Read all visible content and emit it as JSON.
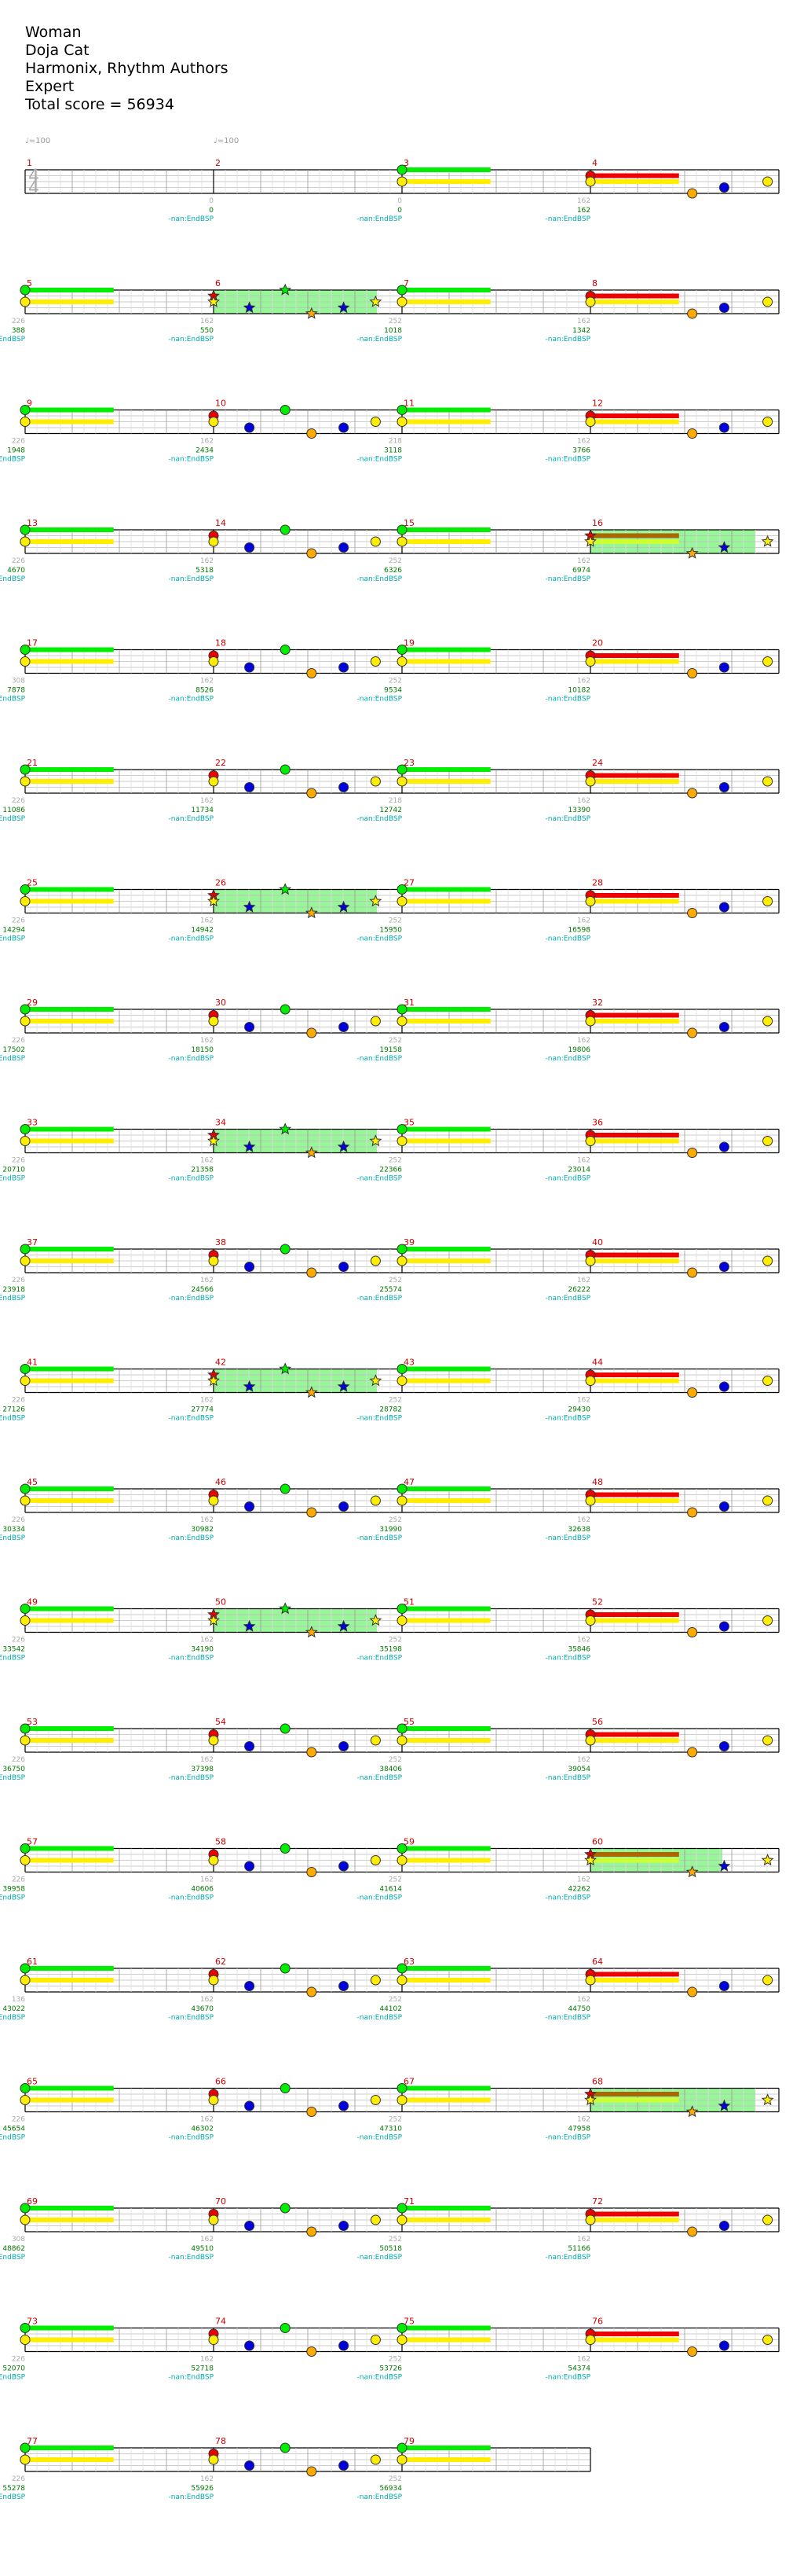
{
  "song": {
    "title": "Woman",
    "artist": "Doja Cat",
    "charter": "Harmonix, Rhythm Authors",
    "difficulty": "Expert",
    "total_score_label": "Total score = 56934"
  },
  "tempo_markers": [
    "♩=100",
    "♩=100"
  ],
  "time_signature": {
    "numerator": "4",
    "denominator": "4"
  },
  "stats_label": "-nan:EndBSP",
  "lane_colors": {
    "green": "#00ee00",
    "red": "#ee0000",
    "yellow": "#ffee00",
    "blue": "#0000dd",
    "orange": "#ffaa00",
    "star_power": "#99f599",
    "sp_sustain": "#aa6600"
  },
  "measures": [
    {
      "num": "1",
      "tick": "",
      "score": "",
      "showStats": false,
      "sp": false
    },
    {
      "num": "2",
      "tick": "0",
      "score": "0",
      "showStats": true,
      "sp": false
    },
    {
      "num": "3",
      "tick": "0",
      "score": "0",
      "showStats": true,
      "sp": false
    },
    {
      "num": "4",
      "tick": "162",
      "score": "162",
      "showStats": true,
      "sp": false
    },
    {
      "num": "5",
      "tick": "226",
      "score": "388",
      "showStats": true,
      "sp": false
    },
    {
      "num": "6",
      "tick": "162",
      "score": "550",
      "showStats": true,
      "sp": true
    },
    {
      "num": "7",
      "tick": "252",
      "score": "1018",
      "showStats": true,
      "sp": false
    },
    {
      "num": "8",
      "tick": "162",
      "score": "1342",
      "showStats": true,
      "sp": false
    },
    {
      "num": "9",
      "tick": "226",
      "score": "1948",
      "showStats": true,
      "sp": false
    },
    {
      "num": "10",
      "tick": "162",
      "score": "2434",
      "showStats": true,
      "sp": false
    },
    {
      "num": "11",
      "tick": "218",
      "score": "3118",
      "showStats": true,
      "sp": false
    },
    {
      "num": "12",
      "tick": "162",
      "score": "3766",
      "showStats": true,
      "sp": false
    },
    {
      "num": "13",
      "tick": "226",
      "score": "4670",
      "showStats": true,
      "sp": false
    },
    {
      "num": "14",
      "tick": "162",
      "score": "5318",
      "showStats": true,
      "sp": false
    },
    {
      "num": "15",
      "tick": "252",
      "score": "6326",
      "showStats": true,
      "sp": false
    },
    {
      "num": "16",
      "tick": "162",
      "score": "6974",
      "showStats": true,
      "sp": true
    },
    {
      "num": "17",
      "tick": "308",
      "score": "7878",
      "showStats": true,
      "sp": false
    },
    {
      "num": "18",
      "tick": "162",
      "score": "8526",
      "showStats": true,
      "sp": false
    },
    {
      "num": "19",
      "tick": "252",
      "score": "9534",
      "showStats": true,
      "sp": false
    },
    {
      "num": "20",
      "tick": "162",
      "score": "10182",
      "showStats": true,
      "sp": false
    },
    {
      "num": "21",
      "tick": "226",
      "score": "11086",
      "showStats": true,
      "sp": false
    },
    {
      "num": "22",
      "tick": "162",
      "score": "11734",
      "showStats": true,
      "sp": false
    },
    {
      "num": "23",
      "tick": "218",
      "score": "12742",
      "showStats": true,
      "sp": false
    },
    {
      "num": "24",
      "tick": "162",
      "score": "13390",
      "showStats": true,
      "sp": false
    },
    {
      "num": "25",
      "tick": "226",
      "score": "14294",
      "showStats": true,
      "sp": false
    },
    {
      "num": "26",
      "tick": "162",
      "score": "14942",
      "showStats": true,
      "sp": true
    },
    {
      "num": "27",
      "tick": "252",
      "score": "15950",
      "showStats": true,
      "sp": false
    },
    {
      "num": "28",
      "tick": "162",
      "score": "16598",
      "showStats": true,
      "sp": false
    },
    {
      "num": "29",
      "tick": "226",
      "score": "17502",
      "showStats": true,
      "sp": false
    },
    {
      "num": "30",
      "tick": "162",
      "score": "18150",
      "showStats": true,
      "sp": false
    },
    {
      "num": "31",
      "tick": "252",
      "score": "19158",
      "showStats": true,
      "sp": false
    },
    {
      "num": "32",
      "tick": "162",
      "score": "19806",
      "showStats": true,
      "sp": false
    },
    {
      "num": "33",
      "tick": "226",
      "score": "20710",
      "showStats": true,
      "sp": false
    },
    {
      "num": "34",
      "tick": "162",
      "score": "21358",
      "showStats": true,
      "sp": true
    },
    {
      "num": "35",
      "tick": "252",
      "score": "22366",
      "showStats": true,
      "sp": false
    },
    {
      "num": "36",
      "tick": "162",
      "score": "23014",
      "showStats": true,
      "sp": false
    },
    {
      "num": "37",
      "tick": "226",
      "score": "23918",
      "showStats": true,
      "sp": false
    },
    {
      "num": "38",
      "tick": "162",
      "score": "24566",
      "showStats": true,
      "sp": false
    },
    {
      "num": "39",
      "tick": "252",
      "score": "25574",
      "showStats": true,
      "sp": false
    },
    {
      "num": "40",
      "tick": "162",
      "score": "26222",
      "showStats": true,
      "sp": false
    },
    {
      "num": "41",
      "tick": "226",
      "score": "27126",
      "showStats": true,
      "sp": false
    },
    {
      "num": "42",
      "tick": "162",
      "score": "27774",
      "showStats": true,
      "sp": true
    },
    {
      "num": "43",
      "tick": "252",
      "score": "28782",
      "showStats": true,
      "sp": false
    },
    {
      "num": "44",
      "tick": "162",
      "score": "29430",
      "showStats": true,
      "sp": false
    },
    {
      "num": "45",
      "tick": "226",
      "score": "30334",
      "showStats": true,
      "sp": false
    },
    {
      "num": "46",
      "tick": "162",
      "score": "30982",
      "showStats": true,
      "sp": false
    },
    {
      "num": "47",
      "tick": "252",
      "score": "31990",
      "showStats": true,
      "sp": false
    },
    {
      "num": "48",
      "tick": "162",
      "score": "32638",
      "showStats": true,
      "sp": false
    },
    {
      "num": "49",
      "tick": "226",
      "score": "33542",
      "showStats": true,
      "sp": false
    },
    {
      "num": "50",
      "tick": "162",
      "score": "34190",
      "showStats": true,
      "sp": true
    },
    {
      "num": "51",
      "tick": "252",
      "score": "35198",
      "showStats": true,
      "sp": false
    },
    {
      "num": "52",
      "tick": "162",
      "score": "35846",
      "showStats": true,
      "sp": false
    },
    {
      "num": "53",
      "tick": "226",
      "score": "36750",
      "showStats": true,
      "sp": false
    },
    {
      "num": "54",
      "tick": "162",
      "score": "37398",
      "showStats": true,
      "sp": false
    },
    {
      "num": "55",
      "tick": "252",
      "score": "38406",
      "showStats": true,
      "sp": false
    },
    {
      "num": "56",
      "tick": "162",
      "score": "39054",
      "showStats": true,
      "sp": false
    },
    {
      "num": "57",
      "tick": "226",
      "score": "39958",
      "showStats": true,
      "sp": false
    },
    {
      "num": "58",
      "tick": "162",
      "score": "40606",
      "showStats": true,
      "sp": false
    },
    {
      "num": "59",
      "tick": "252",
      "score": "41614",
      "showStats": true,
      "sp": false
    },
    {
      "num": "60",
      "tick": "162",
      "score": "42262",
      "showStats": true,
      "sp": true
    },
    {
      "num": "61",
      "tick": "136",
      "score": "43022",
      "showStats": true,
      "sp": false
    },
    {
      "num": "62",
      "tick": "162",
      "score": "43670",
      "showStats": true,
      "sp": false
    },
    {
      "num": "63",
      "tick": "252",
      "score": "44102",
      "showStats": true,
      "sp": false
    },
    {
      "num": "64",
      "tick": "162",
      "score": "44750",
      "showStats": true,
      "sp": false
    },
    {
      "num": "65",
      "tick": "226",
      "score": "45654",
      "showStats": true,
      "sp": false
    },
    {
      "num": "66",
      "tick": "162",
      "score": "46302",
      "showStats": true,
      "sp": false
    },
    {
      "num": "67",
      "tick": "252",
      "score": "47310",
      "showStats": true,
      "sp": false
    },
    {
      "num": "68",
      "tick": "162",
      "score": "47958",
      "showStats": true,
      "sp": true
    },
    {
      "num": "69",
      "tick": "308",
      "score": "48862",
      "showStats": true,
      "sp": false
    },
    {
      "num": "70",
      "tick": "162",
      "score": "49510",
      "showStats": true,
      "sp": false
    },
    {
      "num": "71",
      "tick": "252",
      "score": "50518",
      "showStats": true,
      "sp": false
    },
    {
      "num": "72",
      "tick": "162",
      "score": "51166",
      "showStats": true,
      "sp": false
    },
    {
      "num": "73",
      "tick": "226",
      "score": "52070",
      "showStats": true,
      "sp": false
    },
    {
      "num": "74",
      "tick": "162",
      "score": "52718",
      "showStats": true,
      "sp": false
    },
    {
      "num": "75",
      "tick": "252",
      "score": "53726",
      "showStats": true,
      "sp": false
    },
    {
      "num": "76",
      "tick": "162",
      "score": "54374",
      "showStats": true,
      "sp": false
    },
    {
      "num": "77",
      "tick": "226",
      "score": "55278",
      "showStats": true,
      "sp": false
    },
    {
      "num": "78",
      "tick": "162",
      "score": "55926",
      "showStats": true,
      "sp": false
    },
    {
      "num": "79",
      "tick": "252",
      "score": "56934",
      "showStats": true,
      "sp": false
    }
  ]
}
